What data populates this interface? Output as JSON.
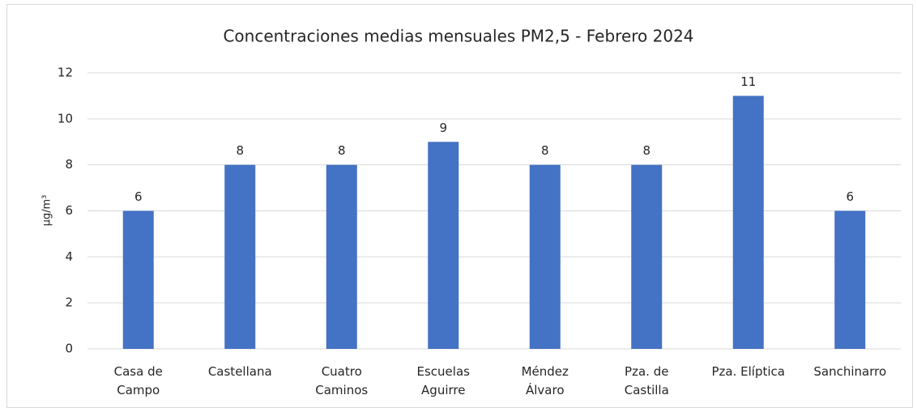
{
  "chart_data": {
    "type": "bar",
    "title": "Concentraciones medias mensuales PM2,5 - Febrero 2024",
    "y_label": "µg/m³",
    "categories": [
      "Casa de\nCampo",
      "Castellana",
      "Cuatro\nCaminos",
      "Escuelas\nAguirre",
      "Méndez\nÁlvaro",
      "Pza. de\nCastilla",
      "Pza. Elíptica",
      "Sanchinarro"
    ],
    "values": [
      6,
      8,
      8,
      9,
      8,
      8,
      11,
      6
    ],
    "color": "#4472c4",
    "ylim": [
      0,
      12
    ],
    "yticks": [
      0,
      2,
      4,
      6,
      8,
      10,
      12
    ],
    "grid": true
  }
}
